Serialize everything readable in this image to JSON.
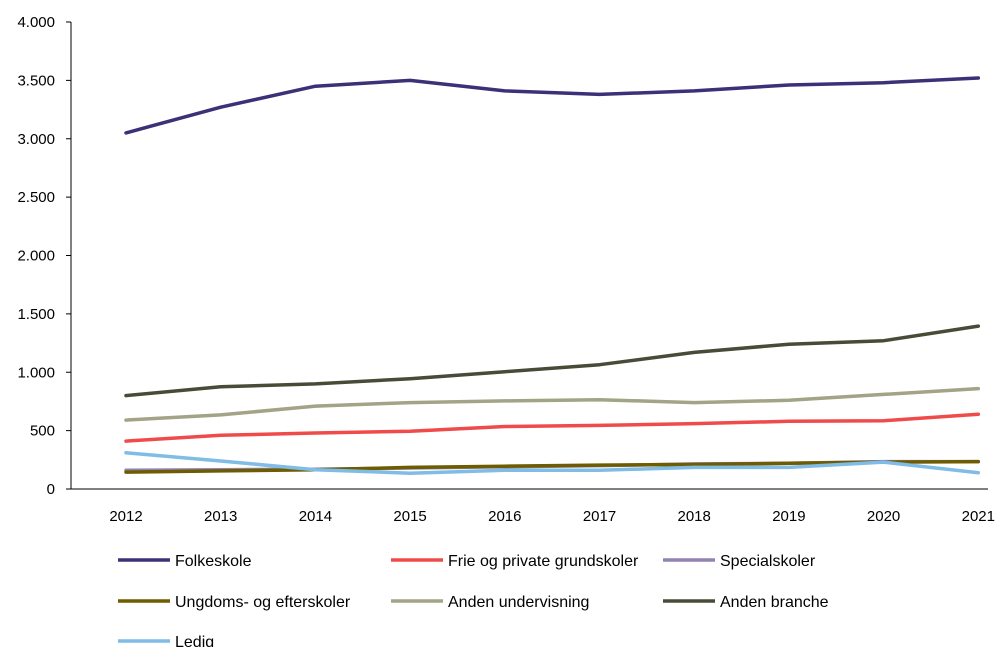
{
  "chart_data": {
    "type": "line",
    "title": "",
    "xlabel": "",
    "ylabel": "",
    "categories": [
      "2012",
      "2013",
      "2014",
      "2015",
      "2016",
      "2017",
      "2018",
      "2019",
      "2020",
      "2021"
    ],
    "ylim": [
      0,
      4000
    ],
    "yticks": [
      0,
      500,
      1000,
      1500,
      2000,
      2500,
      3000,
      3500,
      4000
    ],
    "ytick_labels": [
      "0",
      "500",
      "1.000",
      "1.500",
      "2.000",
      "2.500",
      "3.000",
      "3.500",
      "4.000"
    ],
    "grid": false,
    "legend_position": "bottom",
    "series": [
      {
        "name": "Folkeskole",
        "color": "#3b3178",
        "values": [
          3050,
          3270,
          3450,
          3500,
          3410,
          3380,
          3410,
          3460,
          3480,
          3520
        ]
      },
      {
        "name": "Frie og private grundskoler",
        "color": "#f04b4b",
        "values": [
          410,
          460,
          480,
          495,
          535,
          545,
          560,
          580,
          585,
          640
        ]
      },
      {
        "name": "Specialskoler",
        "color": "#9283b4",
        "values": [
          160,
          165,
          170,
          180,
          190,
          200,
          215,
          220,
          235,
          235
        ]
      },
      {
        "name": "Ungdoms- og efterskoler",
        "color": "#6e5c00",
        "values": [
          145,
          155,
          165,
          185,
          195,
          205,
          210,
          220,
          230,
          235
        ]
      },
      {
        "name": "Anden undervisning",
        "color": "#a3a386",
        "values": [
          590,
          635,
          710,
          740,
          755,
          765,
          740,
          760,
          810,
          860
        ]
      },
      {
        "name": "Anden branche",
        "color": "#4a4a38",
        "values": [
          800,
          875,
          900,
          945,
          1005,
          1065,
          1170,
          1240,
          1270,
          1395
        ]
      },
      {
        "name": "Ledig",
        "color": "#7fbce6",
        "values": [
          310,
          240,
          165,
          135,
          160,
          160,
          185,
          185,
          230,
          140
        ]
      }
    ]
  }
}
